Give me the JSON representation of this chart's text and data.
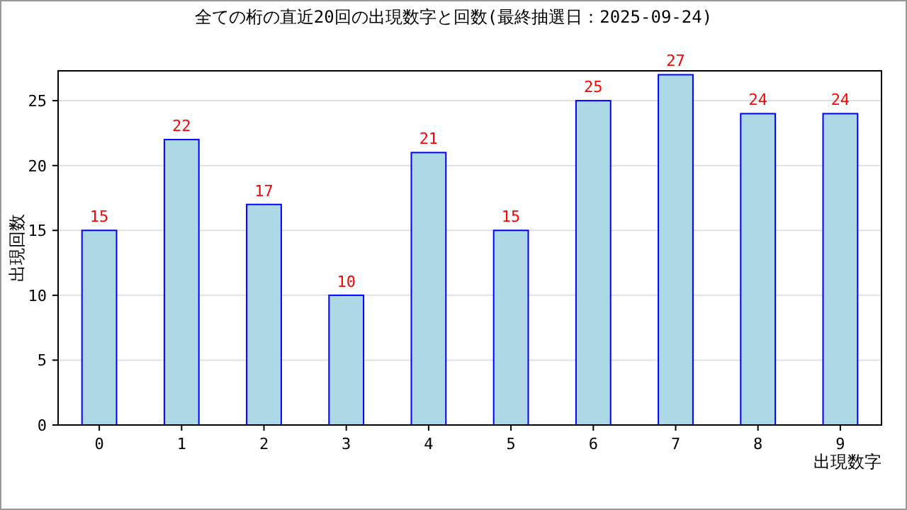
{
  "chart_data": {
    "type": "bar",
    "title": "全ての桁の直近20回の出現数字と回数(最終抽選日：2025-09-24)",
    "xlabel": "出現数字",
    "ylabel": "出現回数",
    "categories": [
      "0",
      "1",
      "2",
      "3",
      "4",
      "5",
      "6",
      "7",
      "8",
      "9"
    ],
    "series": [
      {
        "color": "#add8e6",
        "values": [
          15,
          22,
          17,
          10,
          21,
          15,
          25,
          27,
          24,
          24
        ]
      }
    ],
    "ylim": [
      0,
      27.3
    ],
    "yticks": [
      0,
      5,
      10,
      15,
      20,
      25
    ],
    "grid": "y",
    "data_labels": true
  }
}
